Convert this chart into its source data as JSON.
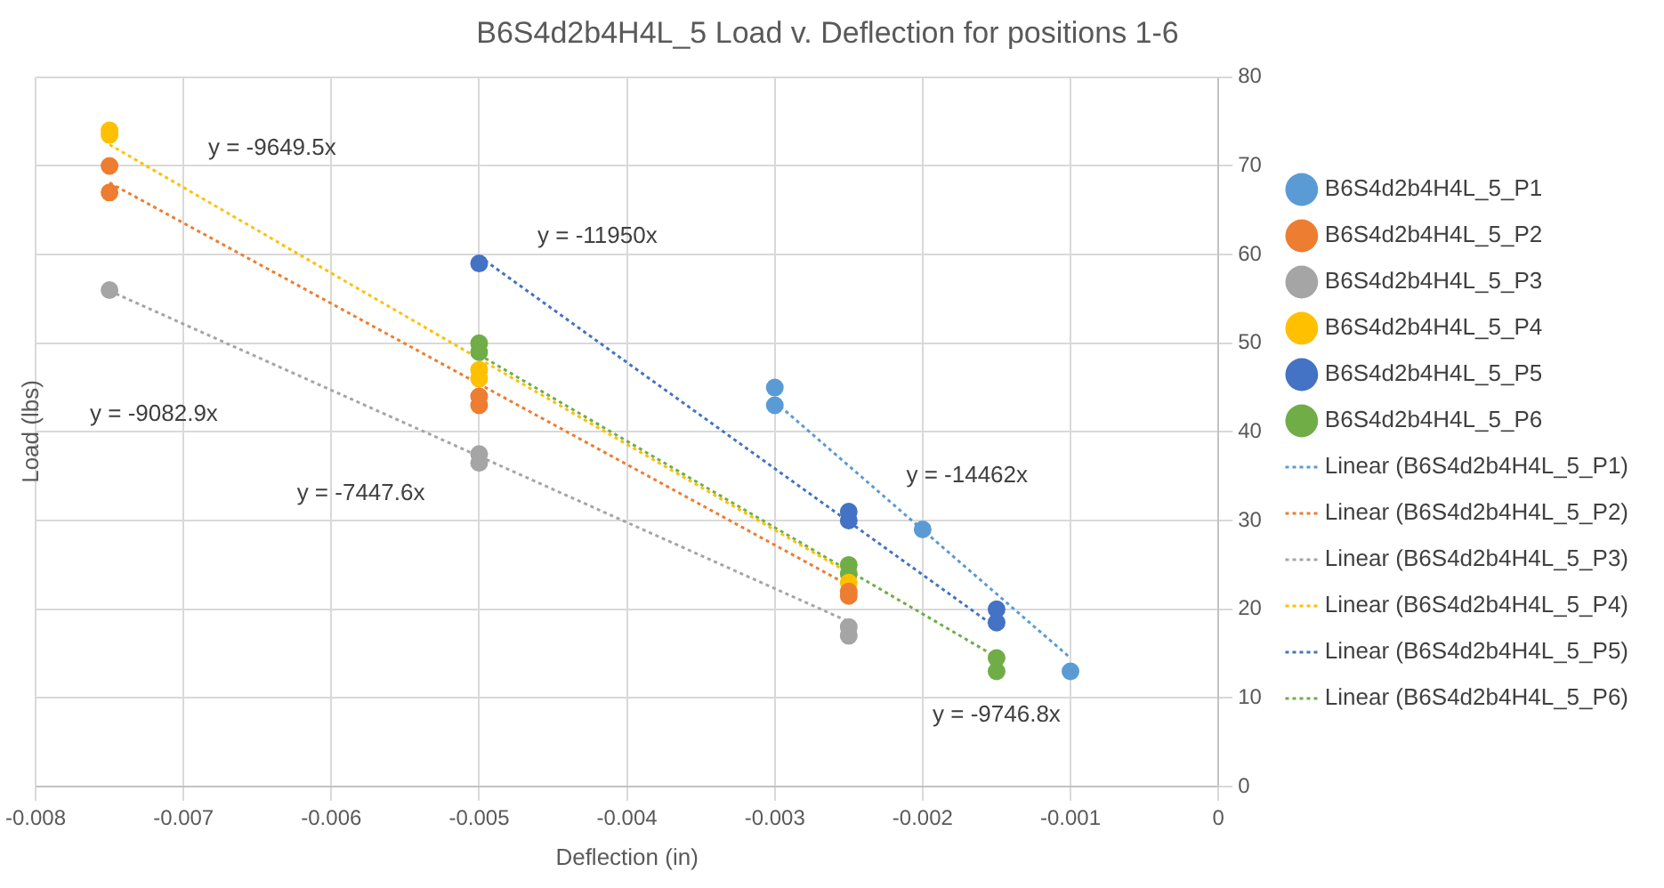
{
  "chart_data": {
    "type": "scatter",
    "title": "B6S4d2b4H4L_5 Load v. Deflection for positions 1-6",
    "xlabel": "Deflection (in)",
    "ylabel": "Load (lbs)",
    "xlim": [
      -0.008,
      0
    ],
    "xticks": [
      {
        "value": -0.008,
        "label": "-0.008"
      },
      {
        "value": -0.007,
        "label": "-0.007"
      },
      {
        "value": -0.006,
        "label": "-0.006"
      },
      {
        "value": -0.005,
        "label": "-0.005"
      },
      {
        "value": -0.004,
        "label": "-0.004"
      },
      {
        "value": -0.003,
        "label": "-0.003"
      },
      {
        "value": -0.002,
        "label": "-0.002"
      },
      {
        "value": -0.001,
        "label": "-0.001"
      },
      0
    ],
    "ylim": [
      0,
      80
    ],
    "yticks": [
      0,
      10,
      20,
      30,
      40,
      50,
      60,
      70,
      80
    ],
    "grid": true,
    "legend": "right",
    "marker": "circle",
    "series": [
      {
        "name": "B6S4d2b4H4L_5_P1",
        "color": "#5b9bd5",
        "x": [
          -0.003,
          -0.003,
          -0.002,
          -0.001
        ],
        "values": [
          45,
          43,
          29,
          13
        ]
      },
      {
        "name": "B6S4d2b4H4L_5_P2",
        "color": "#ed7d31",
        "x": [
          -0.0075,
          -0.0075,
          -0.005,
          -0.005,
          -0.0025,
          -0.0025
        ],
        "values": [
          70,
          67,
          44,
          43,
          22,
          21.5
        ]
      },
      {
        "name": "B6S4d2b4H4L_5_P3",
        "color": "#a5a5a5",
        "x": [
          -0.0075,
          -0.005,
          -0.005,
          -0.0025,
          -0.0025
        ],
        "values": [
          56,
          37.5,
          36.5,
          18,
          17
        ]
      },
      {
        "name": "B6S4d2b4H4L_5_P4",
        "color": "#ffc000",
        "x": [
          -0.0075,
          -0.0075,
          -0.005,
          -0.005,
          -0.0025
        ],
        "values": [
          74,
          73.5,
          47,
          46,
          23
        ]
      },
      {
        "name": "B6S4d2b4H4L_5_P5",
        "color": "#4472c4",
        "x": [
          -0.005,
          -0.0025,
          -0.0025,
          -0.0015,
          -0.0015
        ],
        "values": [
          59,
          31,
          30,
          20,
          18.5
        ]
      },
      {
        "name": "B6S4d2b4H4L_5_P6",
        "color": "#70ad47",
        "x": [
          -0.005,
          -0.005,
          -0.0025,
          -0.0025,
          -0.0015,
          -0.0015
        ],
        "values": [
          50,
          49,
          25,
          24,
          14.5,
          13
        ]
      },
      {
        "name": "Linear (B6S4d2b4H4L_5_P1)",
        "type": "line",
        "line_style": "dotted",
        "marker": "none",
        "color": "#5b9bd5",
        "x": [
          -0.003,
          -0.001
        ],
        "values": [
          43.4,
          14.5
        ]
      },
      {
        "name": "Linear (B6S4d2b4H4L_5_P2)",
        "type": "line",
        "line_style": "dotted",
        "marker": "none",
        "color": "#ed7d31",
        "x": [
          -0.0075,
          -0.0025
        ],
        "values": [
          68.1,
          22.7
        ]
      },
      {
        "name": "Linear (B6S4d2b4H4L_5_P3)",
        "type": "line",
        "line_style": "dotted",
        "marker": "none",
        "color": "#a5a5a5",
        "x": [
          -0.0075,
          -0.0025
        ],
        "values": [
          55.9,
          18.6
        ]
      },
      {
        "name": "Linear (B6S4d2b4H4L_5_P4)",
        "type": "line",
        "line_style": "dotted",
        "marker": "none",
        "color": "#ffc000",
        "x": [
          -0.0075,
          -0.0025
        ],
        "values": [
          72.4,
          24.1
        ]
      },
      {
        "name": "Linear (B6S4d2b4H4L_5_P5)",
        "type": "line",
        "line_style": "dotted",
        "marker": "none",
        "color": "#4472c4",
        "x": [
          -0.005,
          -0.0015
        ],
        "values": [
          59.8,
          17.9
        ]
      },
      {
        "name": "Linear (B6S4d2b4H4L_5_P6)",
        "type": "line",
        "line_style": "dotted",
        "marker": "none",
        "color": "#70ad47",
        "x": [
          -0.005,
          -0.0015
        ],
        "values": [
          48.7,
          14.6
        ]
      }
    ],
    "annotations": [
      "y = -9649.5x",
      "y = -11950x",
      "y = -9082.9x",
      "y = -7447.6x",
      "y = -14462x",
      "y = -9746.8x"
    ]
  }
}
